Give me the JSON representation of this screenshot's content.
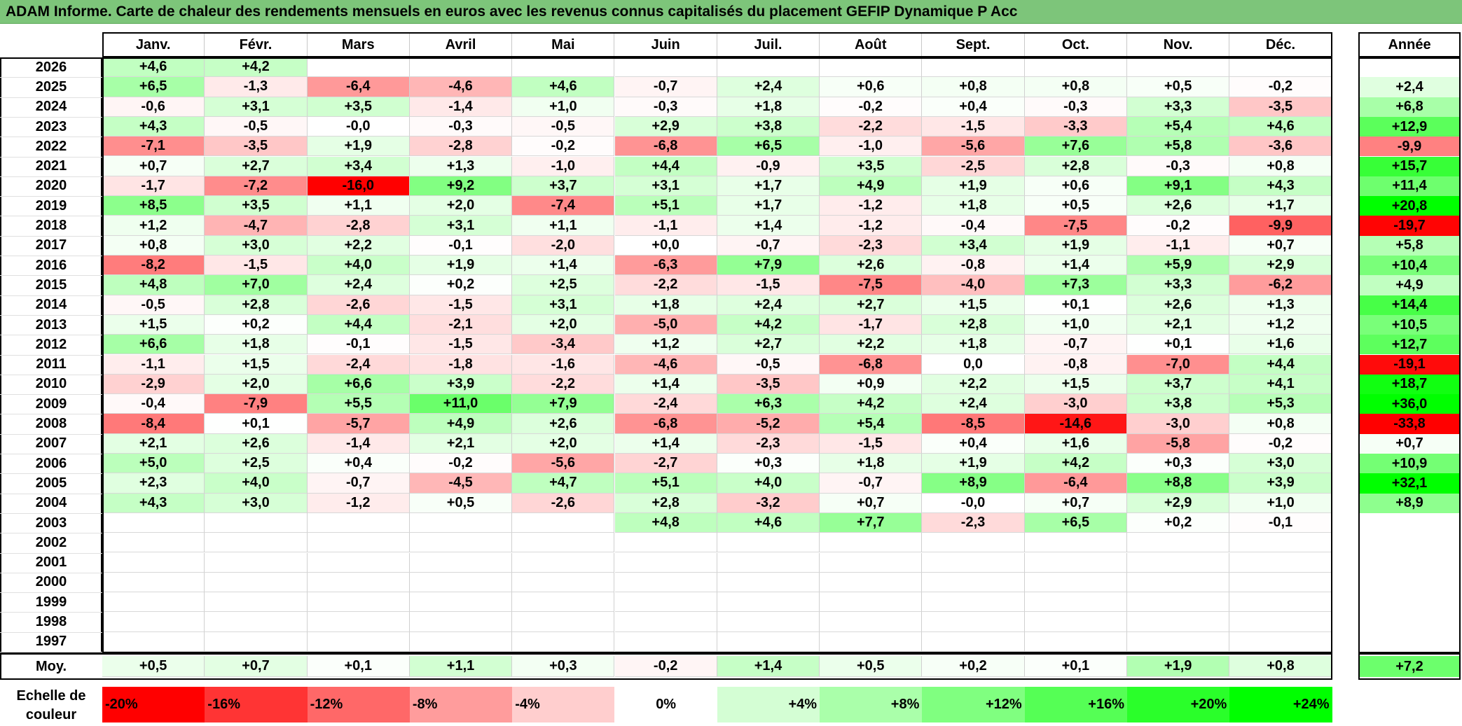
{
  "title": "ADAM Informe. Carte de chaleur des rendements mensuels en euros avec les revenus connus capitalisés du placement GEFIP Dynamique P Acc",
  "chart_data": {
    "type": "heatmap",
    "months": [
      "Janv.",
      "Févr.",
      "Mars",
      "Avril",
      "Mai",
      "Juin",
      "Juil.",
      "Août",
      "Sept.",
      "Oct.",
      "Nov.",
      "Déc."
    ],
    "annual_header": "Année",
    "rows": [
      {
        "year": "2026",
        "values": [
          "+4,6",
          "+4,2",
          "",
          "",
          "",
          "",
          "",
          "",
          "",
          "",
          "",
          ""
        ],
        "annual": ""
      },
      {
        "year": "2025",
        "values": [
          "+6,5",
          "-1,3",
          "-6,4",
          "-4,6",
          "+4,6",
          "-0,7",
          "+2,4",
          "+0,6",
          "+0,8",
          "+0,8",
          "+0,5",
          "-0,2"
        ],
        "annual": "+2,4"
      },
      {
        "year": "2024",
        "values": [
          "-0,6",
          "+3,1",
          "+3,5",
          "-1,4",
          "+1,0",
          "-0,3",
          "+1,8",
          "-0,2",
          "+0,4",
          "-0,3",
          "+3,3",
          "-3,5"
        ],
        "annual": "+6,8"
      },
      {
        "year": "2023",
        "values": [
          "+4,3",
          "-0,5",
          "-0,0",
          "-0,3",
          "-0,5",
          "+2,9",
          "+3,8",
          "-2,2",
          "-1,5",
          "-3,3",
          "+5,4",
          "+4,6"
        ],
        "annual": "+12,9"
      },
      {
        "year": "2022",
        "values": [
          "-7,1",
          "-3,5",
          "+1,9",
          "-2,8",
          "-0,2",
          "-6,8",
          "+6,5",
          "-1,0",
          "-5,6",
          "+7,6",
          "+5,8",
          "-3,6"
        ],
        "annual": "-9,9"
      },
      {
        "year": "2021",
        "values": [
          "+0,7",
          "+2,7",
          "+3,4",
          "+1,3",
          "-1,0",
          "+4,4",
          "-0,9",
          "+3,5",
          "-2,5",
          "+2,8",
          "-0,3",
          "+0,8"
        ],
        "annual": "+15,7"
      },
      {
        "year": "2020",
        "values": [
          "-1,7",
          "-7,2",
          "-16,0",
          "+9,2",
          "+3,7",
          "+3,1",
          "+1,7",
          "+4,9",
          "+1,9",
          "+0,6",
          "+9,1",
          "+4,3"
        ],
        "annual": "+11,4"
      },
      {
        "year": "2019",
        "values": [
          "+8,5",
          "+3,5",
          "+1,1",
          "+2,0",
          "-7,4",
          "+5,1",
          "+1,7",
          "-1,2",
          "+1,8",
          "+0,5",
          "+2,6",
          "+1,7"
        ],
        "annual": "+20,8"
      },
      {
        "year": "2018",
        "values": [
          "+1,2",
          "-4,7",
          "-2,8",
          "+3,1",
          "+1,1",
          "-1,1",
          "+1,4",
          "-1,2",
          "-0,4",
          "-7,5",
          "-0,2",
          "-9,9"
        ],
        "annual": "-19,7"
      },
      {
        "year": "2017",
        "values": [
          "+0,8",
          "+3,0",
          "+2,2",
          "-0,1",
          "-2,0",
          "+0,0",
          "-0,7",
          "-2,3",
          "+3,4",
          "+1,9",
          "-1,1",
          "+0,7"
        ],
        "annual": "+5,8"
      },
      {
        "year": "2016",
        "values": [
          "-8,2",
          "-1,5",
          "+4,0",
          "+1,9",
          "+1,4",
          "-6,3",
          "+7,9",
          "+2,6",
          "-0,8",
          "+1,4",
          "+5,9",
          "+2,9"
        ],
        "annual": "+10,4"
      },
      {
        "year": "2015",
        "values": [
          "+4,8",
          "+7,0",
          "+2,4",
          "+0,2",
          "+2,5",
          "-2,2",
          "-1,5",
          "-7,5",
          "-4,0",
          "+7,3",
          "+3,3",
          "-6,2"
        ],
        "annual": "+4,9"
      },
      {
        "year": "2014",
        "values": [
          "-0,5",
          "+2,8",
          "-2,6",
          "-1,5",
          "+3,1",
          "+1,8",
          "+2,4",
          "+2,7",
          "+1,5",
          "+0,1",
          "+2,6",
          "+1,3"
        ],
        "annual": "+14,4"
      },
      {
        "year": "2013",
        "values": [
          "+1,5",
          "+0,2",
          "+4,4",
          "-2,1",
          "+2,0",
          "-5,0",
          "+4,2",
          "-1,7",
          "+2,8",
          "+1,0",
          "+2,1",
          "+1,2"
        ],
        "annual": "+10,5"
      },
      {
        "year": "2012",
        "values": [
          "+6,6",
          "+1,8",
          "-0,1",
          "-1,5",
          "-3,4",
          "+1,2",
          "+2,7",
          "+2,2",
          "+1,8",
          "-0,7",
          "+0,1",
          "+1,6"
        ],
        "annual": "+12,7"
      },
      {
        "year": "2011",
        "values": [
          "-1,1",
          "+1,5",
          "-2,4",
          "-1,8",
          "-1,6",
          "-4,6",
          "-0,5",
          "-6,8",
          "0,0",
          "-0,8",
          "-7,0",
          "+4,4"
        ],
        "annual": "-19,1"
      },
      {
        "year": "2010",
        "values": [
          "-2,9",
          "+2,0",
          "+6,6",
          "+3,9",
          "-2,2",
          "+1,4",
          "-3,5",
          "+0,9",
          "+2,2",
          "+1,5",
          "+3,7",
          "+4,1"
        ],
        "annual": "+18,7"
      },
      {
        "year": "2009",
        "values": [
          "-0,4",
          "-7,9",
          "+5,5",
          "+11,0",
          "+7,9",
          "-2,4",
          "+6,3",
          "+4,2",
          "+2,4",
          "-3,0",
          "+3,8",
          "+5,3"
        ],
        "annual": "+36,0"
      },
      {
        "year": "2008",
        "values": [
          "-8,4",
          "+0,1",
          "-5,7",
          "+4,9",
          "+2,6",
          "-6,8",
          "-5,2",
          "+5,4",
          "-8,5",
          "-14,6",
          "-3,0",
          "+0,8"
        ],
        "annual": "-33,8"
      },
      {
        "year": "2007",
        "values": [
          "+2,1",
          "+2,6",
          "-1,4",
          "+2,1",
          "+2,0",
          "+1,4",
          "-2,3",
          "-1,5",
          "+0,4",
          "+1,6",
          "-5,8",
          "-0,2"
        ],
        "annual": "+0,7"
      },
      {
        "year": "2006",
        "values": [
          "+5,0",
          "+2,5",
          "+0,4",
          "-0,2",
          "-5,6",
          "-2,7",
          "+0,3",
          "+1,8",
          "+1,9",
          "+4,2",
          "+0,3",
          "+3,0"
        ],
        "annual": "+10,9"
      },
      {
        "year": "2005",
        "values": [
          "+2,3",
          "+4,0",
          "-0,7",
          "-4,5",
          "+4,7",
          "+5,1",
          "+4,0",
          "-0,7",
          "+8,9",
          "-6,4",
          "+8,8",
          "+3,9"
        ],
        "annual": "+32,1"
      },
      {
        "year": "2004",
        "values": [
          "+4,3",
          "+3,0",
          "-1,2",
          "+0,5",
          "-2,6",
          "+2,8",
          "-3,2",
          "+0,7",
          "-0,0",
          "+0,7",
          "+2,9",
          "+1,0"
        ],
        "annual": "+8,9"
      },
      {
        "year": "2003",
        "values": [
          "",
          "",
          "",
          "",
          "",
          "+4,8",
          "+4,6",
          "+7,7",
          "-2,3",
          "+6,5",
          "+0,2",
          "-0,1"
        ],
        "annual": ""
      },
      {
        "year": "2002",
        "values": [
          "",
          "",
          "",
          "",
          "",
          "",
          "",
          "",
          "",
          "",
          "",
          ""
        ],
        "annual": ""
      },
      {
        "year": "2001",
        "values": [
          "",
          "",
          "",
          "",
          "",
          "",
          "",
          "",
          "",
          "",
          "",
          ""
        ],
        "annual": ""
      },
      {
        "year": "2000",
        "values": [
          "",
          "",
          "",
          "",
          "",
          "",
          "",
          "",
          "",
          "",
          "",
          ""
        ],
        "annual": ""
      },
      {
        "year": "1999",
        "values": [
          "",
          "",
          "",
          "",
          "",
          "",
          "",
          "",
          "",
          "",
          "",
          ""
        ],
        "annual": ""
      },
      {
        "year": "1998",
        "values": [
          "",
          "",
          "",
          "",
          "",
          "",
          "",
          "",
          "",
          "",
          "",
          ""
        ],
        "annual": ""
      },
      {
        "year": "1997",
        "values": [
          "",
          "",
          "",
          "",
          "",
          "",
          "",
          "",
          "",
          "",
          "",
          ""
        ],
        "annual": ""
      }
    ],
    "average": {
      "label": "Moy.",
      "values": [
        "+0,5",
        "+0,7",
        "+0,1",
        "+1,1",
        "+0,3",
        "-0,2",
        "+1,4",
        "+0,5",
        "+0,2",
        "+0,1",
        "+1,9",
        "+0,8"
      ],
      "annual": "+7,2"
    },
    "color_scale": {
      "label": "Echelle de couleur",
      "stops": [
        "-20%",
        "-16%",
        "-12%",
        "-8%",
        "-4%",
        "0%",
        "+4%",
        "+8%",
        "+12%",
        "+16%",
        "+20%",
        "+24%"
      ],
      "colors": [
        "#ff0000",
        "#ff3434",
        "#ff6868",
        "#ff9c9c",
        "#ffcece",
        "#ffffff",
        "#d4fed4",
        "#aaffaa",
        "#80ff80",
        "#55ff55",
        "#2aff2a",
        "#00ff00"
      ]
    }
  }
}
